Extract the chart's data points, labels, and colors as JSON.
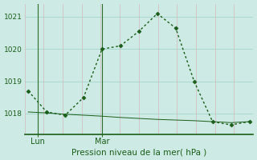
{
  "line1_x": [
    0,
    1,
    2,
    3,
    4,
    5,
    6,
    7,
    8,
    9,
    10,
    11,
    12
  ],
  "line1_y": [
    1018.7,
    1018.05,
    1017.95,
    1018.5,
    1020.0,
    1020.1,
    1020.55,
    1021.1,
    1020.65,
    1019.0,
    1017.75,
    1017.65,
    1017.75
  ],
  "line2_x": [
    0,
    1,
    2,
    3,
    4,
    5,
    6,
    7,
    8,
    9,
    10,
    11,
    12
  ],
  "line2_y": [
    1018.05,
    1018.02,
    1017.98,
    1017.95,
    1017.92,
    1017.88,
    1017.85,
    1017.82,
    1017.8,
    1017.78,
    1017.75,
    1017.72,
    1017.75
  ],
  "lun_x": 0.5,
  "mar_x": 4.0,
  "xlim": [
    -0.2,
    12.2
  ],
  "ylim": [
    1017.35,
    1021.4
  ],
  "yticks": [
    1018,
    1019,
    1020,
    1021
  ],
  "n_vgrid": 12,
  "xlabel": "Pression niveau de la mer( hPa )",
  "bg_color": "#ceeae4",
  "line_color": "#1a5e1a",
  "hgrid_color": "#a8d8d0",
  "vgrid_color": "#d4b8bc",
  "sep_color": "#2d6e2d",
  "marker": "D",
  "markersize": 2.5,
  "linewidth1": 1.0,
  "linewidth2": 0.7
}
